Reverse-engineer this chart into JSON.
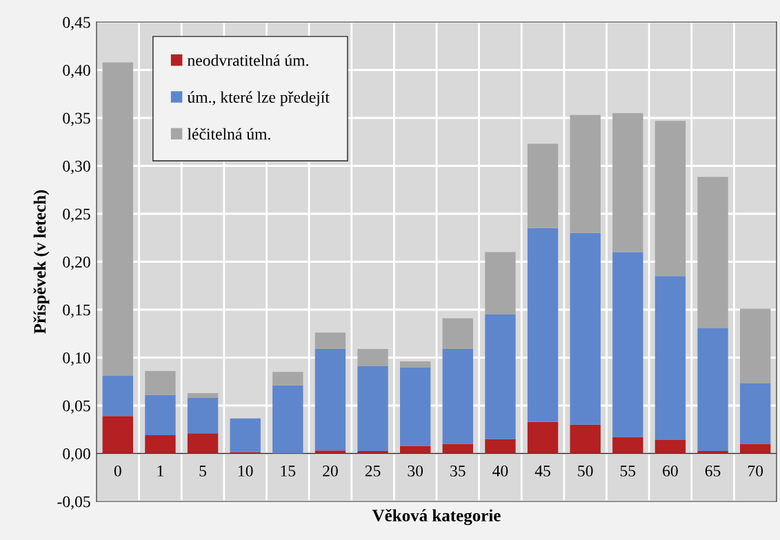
{
  "chart_data": {
    "type": "bar",
    "stacked": true,
    "xlabel": "Věková kategorie",
    "ylabel": "Příspěvek (v letech)",
    "categories": [
      "0",
      "1",
      "5",
      "10",
      "15",
      "20",
      "25",
      "30",
      "35",
      "40",
      "45",
      "50",
      "55",
      "60",
      "65",
      "70"
    ],
    "series": [
      {
        "name": "neodvratitelná úm.",
        "color": "#b52022",
        "values": [
          0.039,
          0.019,
          0.021,
          0.0015,
          null,
          0.003,
          0.0025,
          0.008,
          0.01,
          0.015,
          0.033,
          0.03,
          0.017,
          0.014,
          0.0025,
          0.01
        ]
      },
      {
        "name": "úm., které lze předejít",
        "color": "#5e86cd",
        "values": [
          0.042,
          0.042,
          0.037,
          0.035,
          0.071,
          0.106,
          0.0885,
          0.082,
          0.099,
          0.13,
          0.202,
          0.2,
          0.193,
          0.171,
          0.128,
          0.063
        ]
      },
      {
        "name": "léčitelná úm.",
        "color": "#a6a6a6",
        "values": [
          0.327,
          0.025,
          0.005,
          0,
          0.014,
          0.017,
          0.018,
          0.006,
          0.032,
          0.065,
          0.088,
          0.123,
          0.145,
          0.162,
          0.158,
          0.078
        ]
      }
    ],
    "ylim": [
      -0.05,
      0.45
    ],
    "yticks": [
      {
        "value": -0.05,
        "label": "-0,05"
      },
      {
        "value": 0,
        "label": "0,00"
      },
      {
        "value": 0.05,
        "label": "0,05"
      },
      {
        "value": 0.1,
        "label": "0,10"
      },
      {
        "value": 0.15,
        "label": "0,15"
      },
      {
        "value": 0.2,
        "label": "0,20"
      },
      {
        "value": 0.25,
        "label": "0,25"
      },
      {
        "value": 0.3,
        "label": "0,30"
      },
      {
        "value": 0.35,
        "label": "0,35"
      },
      {
        "value": 0.4,
        "label": "0,40"
      },
      {
        "value": 0.45,
        "label": "0,45"
      }
    ],
    "grid": true,
    "legend": "top left"
  }
}
